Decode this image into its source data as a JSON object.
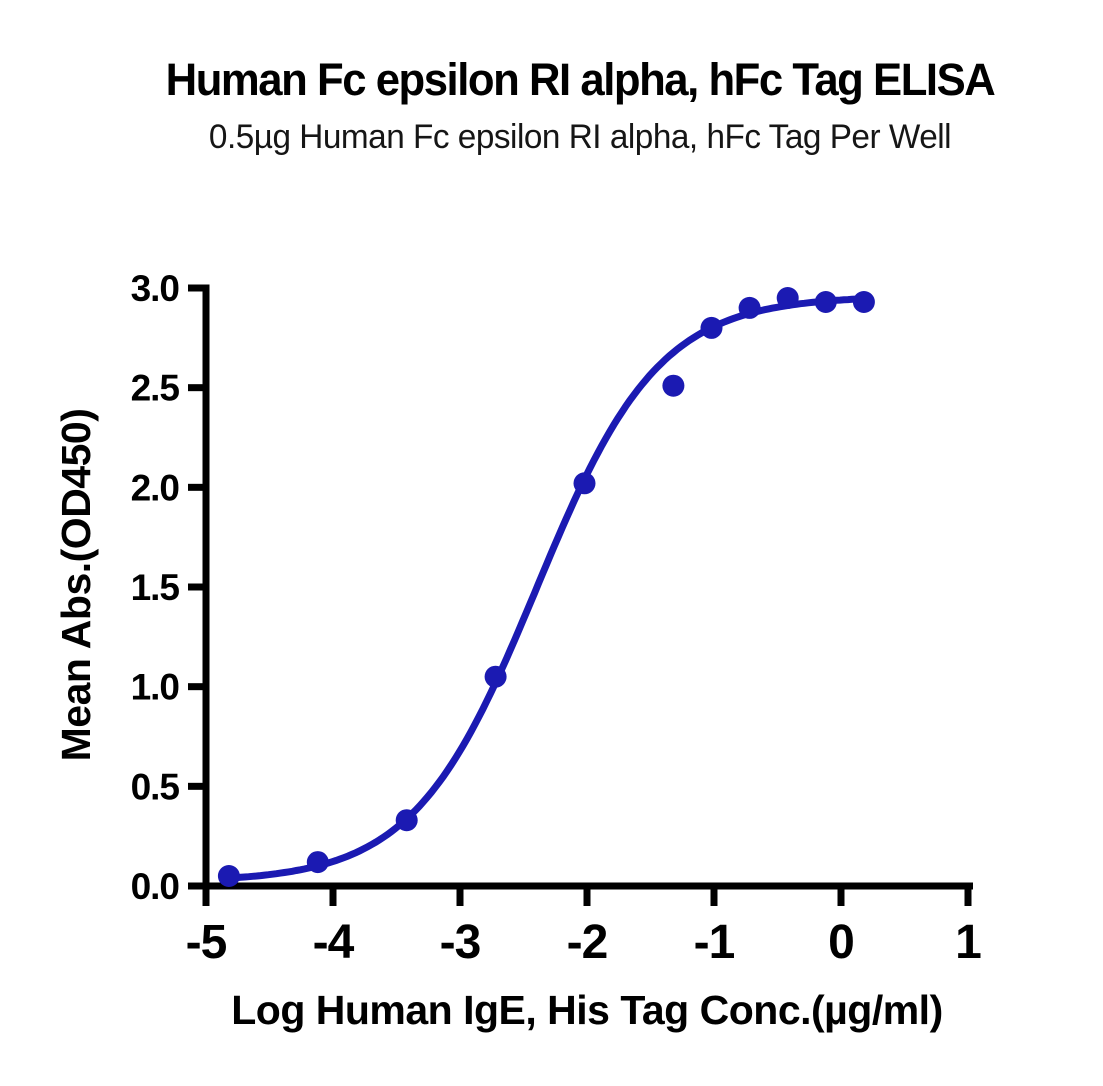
{
  "chart_data": {
    "type": "scatter",
    "title": "Human Fc epsilon RI alpha, hFc Tag ELISA",
    "subtitle": "0.5µg Human Fc epsilon RI alpha, hFc Tag Per Well",
    "xlabel": "Log Human IgE, His Tag Conc.(µg/ml)",
    "ylabel": "Mean Abs.(OD450)",
    "xlim": [
      -5,
      1
    ],
    "ylim": [
      0,
      3
    ],
    "xticks": [
      -5,
      -4,
      -3,
      -2,
      -1,
      0,
      1
    ],
    "xtick_labels": [
      "-5",
      "-4",
      "-3",
      "-2",
      "-1",
      "0",
      "1"
    ],
    "yticks": [
      0,
      0.5,
      1,
      1.5,
      2,
      2.5,
      3
    ],
    "ytick_labels": [
      "0.0",
      "0.5",
      "1.0",
      "1.5",
      "2.0",
      "2.5",
      "3.0"
    ],
    "grid": false,
    "legend": null,
    "series": [
      {
        "name": "Human IgE, His Tag",
        "marker": "circle",
        "color": "#1b1ab2",
        "points": [
          {
            "x": -4.82,
            "y": 0.05
          },
          {
            "x": -4.12,
            "y": 0.12
          },
          {
            "x": -3.42,
            "y": 0.33
          },
          {
            "x": -2.72,
            "y": 1.05
          },
          {
            "x": -2.02,
            "y": 2.02
          },
          {
            "x": -1.32,
            "y": 2.51
          },
          {
            "x": -1.02,
            "y": 2.8
          },
          {
            "x": -0.72,
            "y": 2.9
          },
          {
            "x": -0.42,
            "y": 2.95
          },
          {
            "x": -0.12,
            "y": 2.93
          },
          {
            "x": 0.18,
            "y": 2.93
          }
        ]
      }
    ],
    "fit_curve": {
      "model": "4PL",
      "bottom": 0.02,
      "top": 2.96,
      "logEC50": -2.4,
      "hillslope": 0.9,
      "x_start": -4.82,
      "x_end": 0.18,
      "color": "#1b1ab2"
    },
    "colors": {
      "axis": "#000000",
      "text": "#000000"
    }
  }
}
